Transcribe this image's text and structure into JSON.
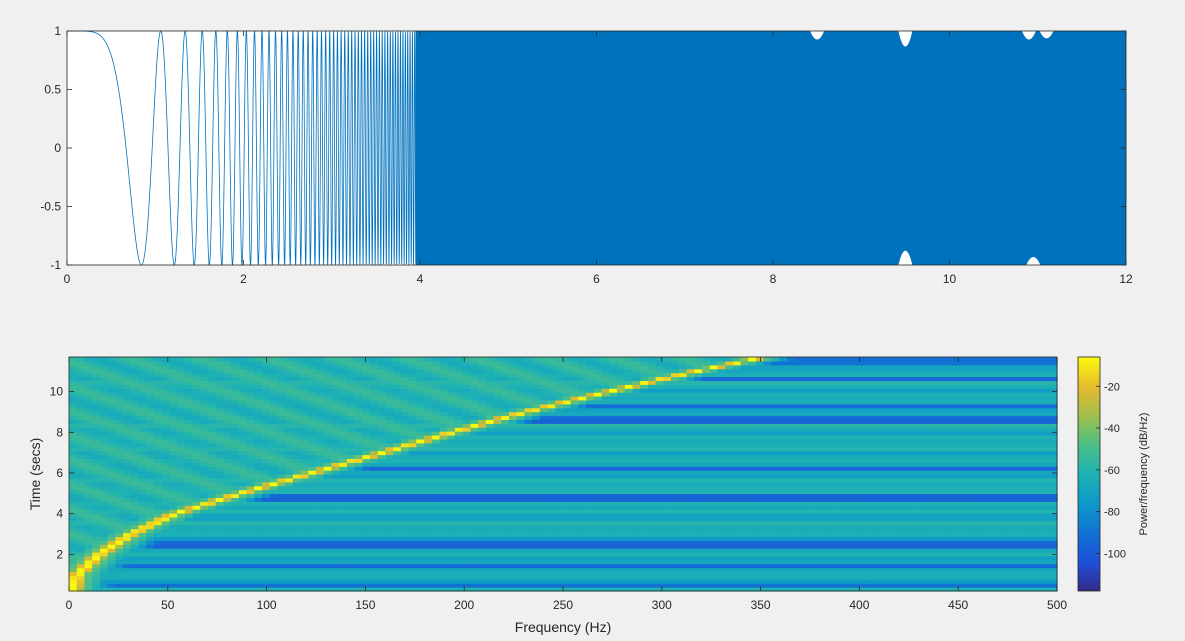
{
  "chart_data": [
    {
      "type": "line",
      "x": [
        0,
        0.05,
        0.1,
        0.15,
        0.2,
        0.25,
        0.3,
        0.35,
        0.4,
        0.45,
        0.5,
        0.55,
        0.6,
        0.65,
        0.7,
        0.75,
        0.8,
        0.85,
        0.9,
        0.95,
        1,
        1.05,
        1.1,
        1.15,
        1.2
      ],
      "y": [
        1,
        0.97,
        0.87,
        0.71,
        0.43,
        0.11,
        -0.28,
        -0.63,
        -0.91,
        -0.99,
        -0.72,
        -0.2,
        0.42,
        0.89,
        0.97,
        0.57,
        -0.12,
        -0.77,
        -0.99,
        -0.59,
        0.13,
        0.8,
        0.97,
        0.45,
        -0.36
      ],
      "signal": "chirp sweeping from 0 Hz at t=0 to ~400 Hz at t=12 s, amplitude 1",
      "xlim": [
        0,
        12
      ],
      "ylim": [
        -1,
        1
      ],
      "xticks": [
        "0",
        "2",
        "4",
        "6",
        "8",
        "10",
        "12"
      ],
      "yticks": [
        "1",
        "0.5",
        "0",
        "-0.5",
        "-1"
      ],
      "line_color": "#0072bd"
    },
    {
      "type": "heatmap",
      "xlabel": "Frequency (Hz)",
      "ylabel": "Time (secs)",
      "xlim": [
        0,
        500
      ],
      "ylim": [
        0.2,
        11.7
      ],
      "xticks": [
        "0",
        "50",
        "100",
        "150",
        "200",
        "250",
        "300",
        "350",
        "400",
        "450",
        "500"
      ],
      "yticks": [
        "2",
        "4",
        "6",
        "8",
        "10"
      ],
      "ridge": {
        "description": "peak power follows f = 0.00156 * 256 * t^2 style quadratic chirp",
        "points": [
          {
            "t": 0.3,
            "f": 2
          },
          {
            "t": 1.0,
            "f": 4
          },
          {
            "t": 2.0,
            "f": 15
          },
          {
            "t": 3.0,
            "f": 31
          },
          {
            "t": 4.0,
            "f": 53
          },
          {
            "t": 5.0,
            "f": 86
          },
          {
            "t": 6.0,
            "f": 122
          },
          {
            "t": 7.0,
            "f": 158
          },
          {
            "t": 8.0,
            "f": 193
          },
          {
            "t": 9.0,
            "f": 230
          },
          {
            "t": 10.0,
            "f": 272
          },
          {
            "t": 11.0,
            "f": 316
          },
          {
            "t": 11.6,
            "f": 346
          }
        ]
      },
      "dark_bands_t": [
        0.5,
        1.4,
        2.4,
        2.6,
        4.8,
        4.9,
        6.2,
        8.6,
        8.8,
        9.3,
        10.6,
        11.5
      ],
      "colorbar": {
        "label": "Power/frequency (dB/Hz)",
        "ticks": [
          "-20",
          "-40",
          "-60",
          "-80",
          "-100"
        ],
        "range": [
          -118,
          -6
        ],
        "colormap": "parula"
      }
    }
  ]
}
